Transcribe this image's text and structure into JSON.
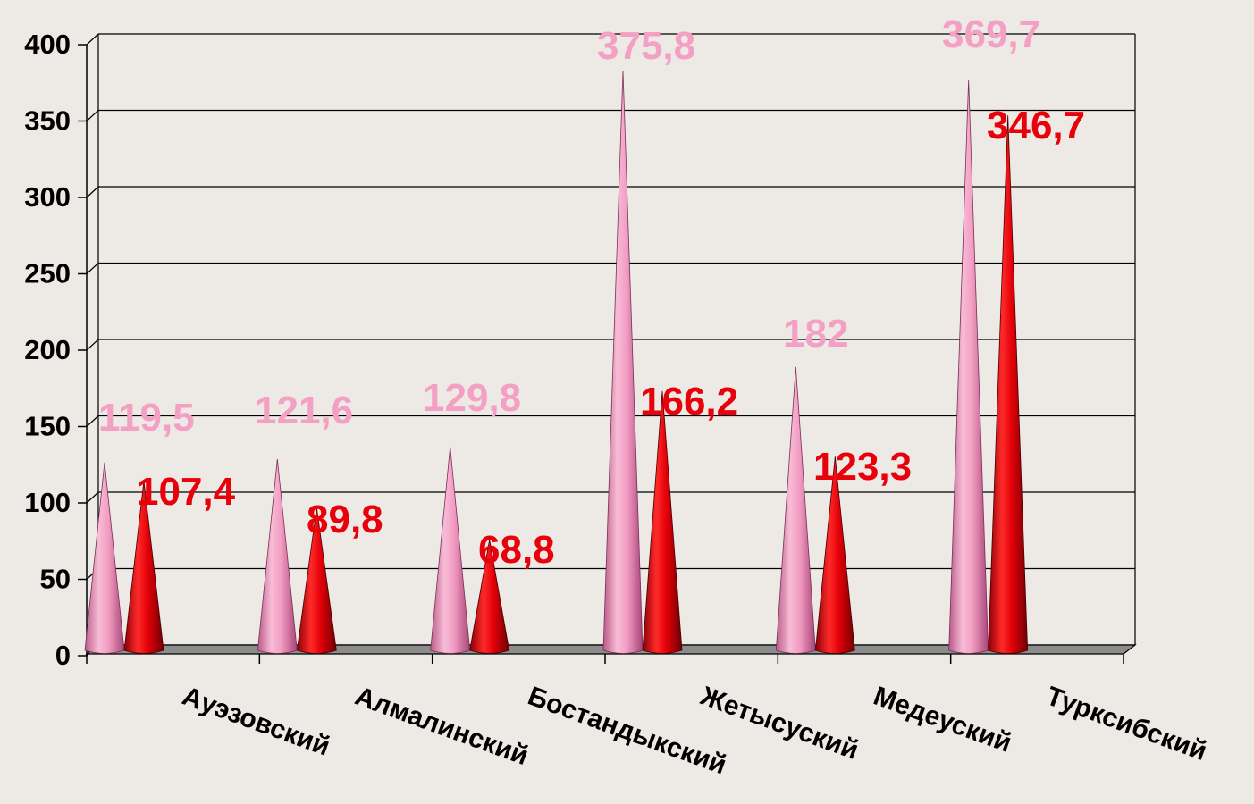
{
  "chart_data": {
    "type": "bar",
    "style": "3d-cone",
    "categories": [
      "Ауэзовский",
      "Алмалинский",
      "Бостандыкский",
      "Жетысуский",
      "Медеуский",
      "Турксибский"
    ],
    "series": [
      {
        "color": "#f4a0c4",
        "values": [
          119.5,
          121.6,
          129.8,
          375.8,
          182,
          369.7
        ],
        "labels": [
          "119,5",
          "121,6",
          "129,8",
          "375,8",
          "182",
          "369,7"
        ]
      },
      {
        "color": "#e8000a",
        "values": [
          107.4,
          89.8,
          68.8,
          166.2,
          123.3,
          346.7
        ],
        "labels": [
          "107,4",
          "89,8",
          "68,8",
          "166,2",
          "123,3",
          "346,7"
        ]
      }
    ],
    "yticks": [
      "0",
      "50",
      "100",
      "150",
      "200",
      "250",
      "300",
      "350",
      "400"
    ],
    "ylim": [
      0,
      400
    ],
    "grid": true,
    "legend": "none"
  }
}
